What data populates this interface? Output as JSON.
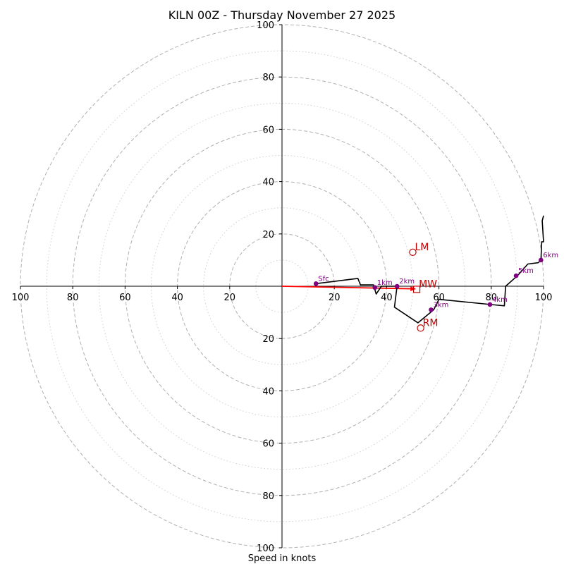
{
  "chart_data": {
    "type": "hodograph",
    "title": "KILN 00Z - Thursday November 27 2025",
    "xlabel": "Speed in knots",
    "axis_range_knots": [
      -100,
      100
    ],
    "ring_major_knots": [
      20,
      40,
      60,
      80,
      100
    ],
    "ring_minor_knots": [
      10,
      30,
      50,
      70,
      90
    ],
    "x_tick_labels": [
      "100",
      "80",
      "60",
      "40",
      "20",
      "20",
      "40",
      "60",
      "80",
      "100"
    ],
    "x_tick_values": [
      -100,
      -80,
      -60,
      -40,
      -20,
      20,
      40,
      60,
      80,
      100
    ],
    "y_tick_labels": [
      "100",
      "80",
      "60",
      "40",
      "20",
      "20",
      "40",
      "60",
      "80",
      "100"
    ],
    "y_tick_values": [
      100,
      80,
      60,
      40,
      20,
      -20,
      -40,
      -60,
      -80,
      -100
    ],
    "hodograph_line": [
      [
        13,
        1
      ],
      [
        29,
        3
      ],
      [
        30,
        0.5
      ],
      [
        35,
        0.5
      ],
      [
        36,
        -3
      ],
      [
        38,
        0
      ],
      [
        44,
        0
      ],
      [
        43,
        -8
      ],
      [
        52,
        -14
      ],
      [
        58,
        -9
      ],
      [
        60,
        -5
      ],
      [
        80,
        -7
      ],
      [
        85,
        -7.5
      ],
      [
        85.5,
        0
      ],
      [
        90,
        4
      ],
      [
        94,
        8.5
      ],
      [
        98,
        9
      ],
      [
        99,
        10
      ],
      [
        99.3,
        17
      ],
      [
        100,
        17
      ],
      [
        99.5,
        25
      ],
      [
        100,
        27
      ]
    ],
    "height_markers": [
      {
        "label": "Sfc",
        "u": 13,
        "v": 1
      },
      {
        "label": "1km",
        "u": 35.5,
        "v": -0.5
      },
      {
        "label": "2km",
        "u": 44,
        "v": 0
      },
      {
        "label": "3km",
        "u": 57,
        "v": -9
      },
      {
        "label": "4km",
        "u": 79.5,
        "v": -7
      },
      {
        "label": "5km",
        "u": 89.5,
        "v": 4
      },
      {
        "label": "6km",
        "u": 99,
        "v": 10
      }
    ],
    "storm_motion": {
      "LM": {
        "label": "LM",
        "u": 50,
        "v": 13
      },
      "RM": {
        "label": "RM",
        "u": 53,
        "v": -16
      },
      "MW": {
        "label": "MW",
        "u": 51.5,
        "v": -1.2
      }
    },
    "shear_vector": {
      "from": [
        0,
        0
      ],
      "to": [
        51,
        -1
      ]
    },
    "colors": {
      "hodograph": "#000000",
      "markers": "#800080",
      "storm_motion": "#c00000",
      "shear_vector": "#ff0000",
      "grid": "#b0b0b0",
      "axes": "#000000"
    }
  }
}
